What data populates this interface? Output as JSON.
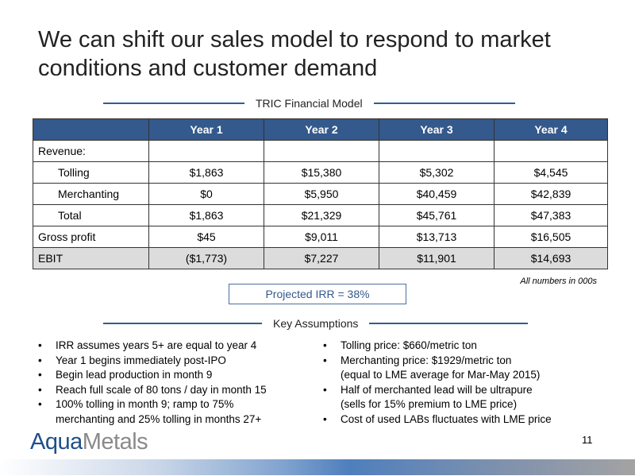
{
  "title": "We can shift our sales model to respond to market conditions and customer demand",
  "section1": "TRIC Financial Model",
  "table": {
    "headers": [
      "",
      "Year 1",
      "Year 2",
      "Year 3",
      "Year 4"
    ],
    "rows": [
      [
        "Revenue:",
        "",
        "",
        "",
        ""
      ],
      [
        "Tolling",
        "$1,863",
        "$15,380",
        "$5,302",
        "$4,545"
      ],
      [
        "Merchanting",
        "$0",
        "$5,950",
        "$40,459",
        "$42,839"
      ],
      [
        "Total",
        "$1,863",
        "$21,329",
        "$45,761",
        "$47,383"
      ],
      [
        "Gross profit",
        "$45",
        "$9,011",
        "$13,713",
        "$16,505"
      ],
      [
        "EBIT",
        "($1,773)",
        "$7,227",
        "$11,901",
        "$14,693"
      ]
    ]
  },
  "note": "All numbers in 000s",
  "irr": "Projected IRR = 38%",
  "section2": "Key Assumptions",
  "left_bullets": [
    "IRR assumes years 5+ are equal to year 4",
    "Year 1 begins immediately post-IPO",
    "Begin lead production in month 9",
    "Reach full scale of 80 tons / day in month 15",
    "100% tolling in month 9; ramp to 75%",
    "merchanting and 25% tolling in months 27+"
  ],
  "right_bullets": [
    "Tolling price:  $660/metric ton",
    "Merchanting price: $1929/metric ton",
    "(equal to LME average for Mar-May 2015)",
    "Half of merchanted lead will be ultrapure",
    "(sells for 15% premium to LME price)",
    "Cost of used LABs fluctuates with LME price"
  ],
  "logo": {
    "part1": "Aqua",
    "part2": "Metals"
  },
  "page_number": "11"
}
